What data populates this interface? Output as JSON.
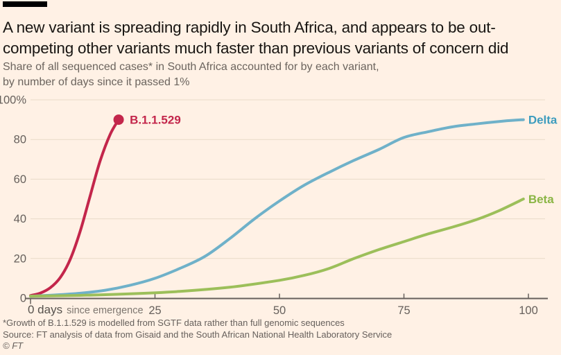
{
  "colors": {
    "background": "#FFF1E5",
    "title_text": "#181512",
    "muted_text": "#66605c",
    "grid": "#e8dac8",
    "axis": "#66605c"
  },
  "header": {
    "title_lines": [
      "A new variant is spreading rapidly in South Africa, and appears to be out-",
      "competing other variants much faster than previous variants of concern did"
    ],
    "subtitle_lines": [
      "Share of all sequenced cases* in South Africa accounted for by each variant,",
      "by number of days since it passed 1%"
    ]
  },
  "chart_data": {
    "type": "line",
    "title": "Share of all sequenced cases in South Africa accounted for by each variant, by number of days since it passed 1%",
    "xlabel": "0 days since emergence",
    "ylabel": "%",
    "x_axis": {
      "range": [
        0,
        100
      ],
      "ticks": [
        0,
        25,
        50,
        75,
        100
      ],
      "caption_value": "0 days",
      "caption_suffix": "since emergence"
    },
    "y_axis": {
      "range": [
        0,
        100
      ],
      "ticks": [
        0,
        20,
        40,
        60,
        80,
        100
      ],
      "top_tick_label": "100%"
    },
    "grid": "horizontal",
    "legend_position": "end-of-line labels",
    "series": [
      {
        "name": "B.1.1.529",
        "color": "#c3264b",
        "label_color": "#c3264b",
        "end_marker": "dot",
        "points": [
          [
            0,
            1.3
          ],
          [
            2,
            2.6
          ],
          [
            4,
            5.3
          ],
          [
            6,
            10.5
          ],
          [
            8,
            19.7
          ],
          [
            10,
            33.9
          ],
          [
            12,
            51.8
          ],
          [
            14,
            69.3
          ],
          [
            16,
            82.6
          ],
          [
            17.7,
            90
          ]
        ]
      },
      {
        "name": "Delta",
        "color": "#6fb1c9",
        "label_color": "#3d9cbe",
        "end_marker": "none",
        "points": [
          [
            0,
            1
          ],
          [
            5,
            1.6
          ],
          [
            10,
            2.5
          ],
          [
            15,
            4
          ],
          [
            20,
            6.5
          ],
          [
            25,
            10
          ],
          [
            30,
            15
          ],
          [
            35,
            21
          ],
          [
            40,
            30
          ],
          [
            45,
            40
          ],
          [
            50,
            49
          ],
          [
            55,
            57
          ],
          [
            60,
            63.5
          ],
          [
            65,
            69.5
          ],
          [
            70,
            75
          ],
          [
            75,
            81
          ],
          [
            80,
            84
          ],
          [
            85,
            86.5
          ],
          [
            90,
            88
          ],
          [
            95,
            89.3
          ],
          [
            99,
            90
          ]
        ]
      },
      {
        "name": "Beta",
        "color": "#9cbf5a",
        "label_color": "#8ab545",
        "end_marker": "none",
        "points": [
          [
            0,
            1
          ],
          [
            10,
            1.4
          ],
          [
            20,
            2.2
          ],
          [
            30,
            3.4
          ],
          [
            40,
            5.5
          ],
          [
            50,
            9
          ],
          [
            55,
            11.5
          ],
          [
            60,
            15
          ],
          [
            65,
            20
          ],
          [
            70,
            24.5
          ],
          [
            75,
            28.5
          ],
          [
            80,
            32.5
          ],
          [
            85,
            36
          ],
          [
            90,
            40
          ],
          [
            94,
            44
          ],
          [
            99,
            50
          ]
        ]
      }
    ]
  },
  "footer": {
    "footnote": "*Growth of B.1.1.529 is modelled from SGTF data rather than full genomic sequences",
    "source": "Source: FT analysis of data from Gisaid and the South African National Health Laboratory Service",
    "copyright": "© FT"
  }
}
